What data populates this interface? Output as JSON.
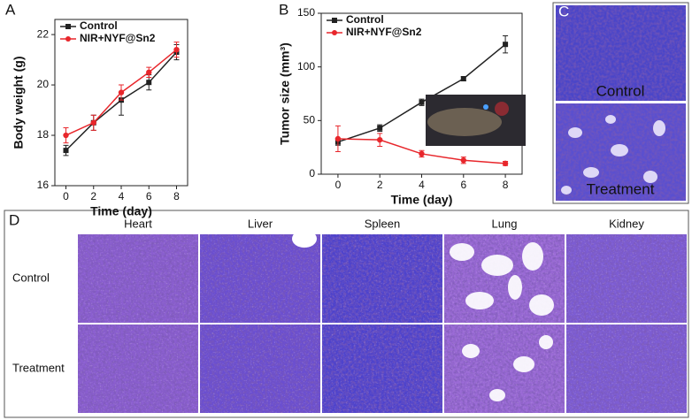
{
  "chart_data": [
    {
      "type": "line",
      "label": "A",
      "x_label": "Time (day)",
      "y_label": "Body weight (g)",
      "x": [
        0,
        2,
        4,
        6,
        8
      ],
      "xlim": [
        -0.8,
        8.8
      ],
      "xticks": [
        0,
        2,
        4,
        6,
        8
      ],
      "ylim": [
        16,
        22.6
      ],
      "yticks": [
        16,
        18,
        20,
        22
      ],
      "legend": "upper left",
      "series": [
        {
          "name": "Control",
          "color": "#222222",
          "marker": "square",
          "values": [
            17.4,
            18.5,
            19.4,
            20.1,
            21.3
          ],
          "errors": [
            0.2,
            0.3,
            0.6,
            0.3,
            0.3
          ]
        },
        {
          "name": "NIR+NYF@Sn2",
          "color": "#e8262b",
          "marker": "circle",
          "values": [
            18.0,
            18.5,
            19.7,
            20.5,
            21.4
          ],
          "errors": [
            0.3,
            0.3,
            0.3,
            0.2,
            0.3
          ]
        }
      ]
    },
    {
      "type": "line",
      "label": "B",
      "x_label": "Time (day)",
      "y_label": "Tumor size (mm³)",
      "x": [
        0,
        2,
        4,
        6,
        8
      ],
      "xlim": [
        -0.8,
        8.8
      ],
      "xticks": [
        0,
        2,
        4,
        6,
        8
      ],
      "ylim": [
        0,
        150
      ],
      "yticks": [
        0,
        50,
        100,
        150
      ],
      "legend": "upper left",
      "series": [
        {
          "name": "Control",
          "color": "#222222",
          "marker": "square",
          "values": [
            30,
            43,
            67,
            89,
            121
          ],
          "errors": [
            3,
            3,
            3,
            2,
            8
          ]
        },
        {
          "name": "NIR+NYF@Sn2",
          "color": "#e8262b",
          "marker": "circle",
          "values": [
            33,
            32,
            19,
            13,
            10
          ],
          "errors": [
            12,
            6,
            3,
            3,
            2
          ]
        }
      ]
    }
  ],
  "panel_c": {
    "label": "C",
    "rows": [
      "Control",
      "Treatment"
    ]
  },
  "panel_d": {
    "label": "D",
    "columns": [
      "Heart",
      "Liver",
      "Spleen",
      "Lung",
      "Kidney"
    ],
    "rows": [
      "Control",
      "Treatment"
    ]
  }
}
